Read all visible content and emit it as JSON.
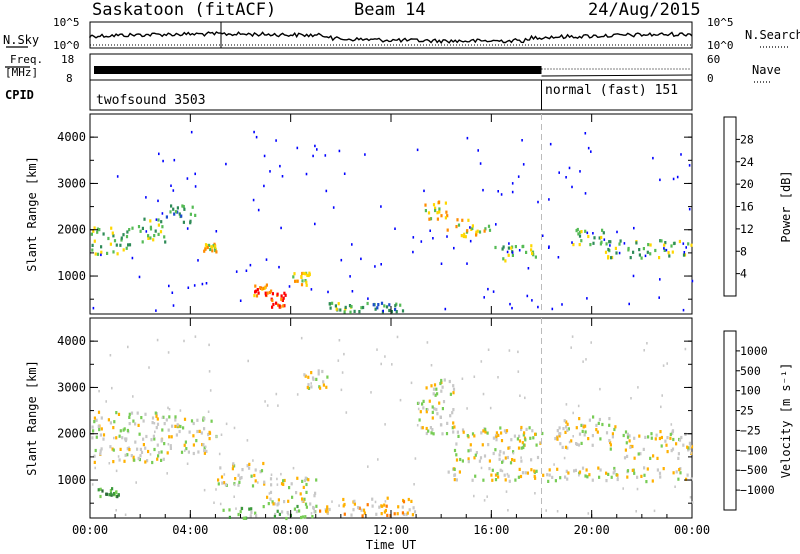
{
  "header": {
    "station": "Saskatoon (fitACF)",
    "beam": "Beam 14",
    "date": "24/Aug/2015"
  },
  "summary_panel": {
    "nsky_label": "N.Sky",
    "nsky_top_tick": "10^5",
    "nsky_bottom_tick": "10^0",
    "nsearch_label": "N.Search",
    "nsearch_top_tick": "10^5",
    "nsearch_bottom_tick": "10^0",
    "freq_label_line1": "Freq.",
    "freq_label_line2": "[MHz]",
    "freq_top_tick": "18",
    "freq_bottom_tick": "8",
    "nave_label": "Nave",
    "nave_top_tick": "60",
    "nave_bottom_tick": "0",
    "cpid_label": "CPID",
    "cpid_1": "twofsound 3503",
    "cpid_2": "normal (fast) 151"
  },
  "chart_data": [
    {
      "type": "heatmap",
      "name": "power",
      "ylabel": "Slant Range [km]",
      "colorbar_label": "Power [dB]",
      "colorbar_ticks": [
        "28",
        "24",
        "20",
        "16",
        "12",
        "8",
        "4"
      ],
      "colors": [
        "#0000ff",
        "#1a4ccc",
        "#2e8b57",
        "#55bb55",
        "#ffd700",
        "#ff8c00",
        "#ff0000"
      ],
      "y_ticks": [
        "1000",
        "2000",
        "3000",
        "4000"
      ],
      "ylim": [
        180,
        4500
      ],
      "regions": [
        {
          "x": [
            0.0,
            1.8
          ],
          "y": [
            1500,
            2100
          ],
          "level": 3
        },
        {
          "x": [
            1.8,
            3.0
          ],
          "y": [
            1750,
            2300
          ],
          "level": 3
        },
        {
          "x": [
            3.0,
            4.2
          ],
          "y": [
            2150,
            2550
          ],
          "level": 2
        },
        {
          "x": [
            4.5,
            5.0
          ],
          "y": [
            1550,
            1750
          ],
          "level": 4
        },
        {
          "x": [
            6.5,
            7.2
          ],
          "y": [
            600,
            900
          ],
          "level": 5
        },
        {
          "x": [
            7.2,
            7.8
          ],
          "y": [
            350,
            700
          ],
          "level": 6
        },
        {
          "x": [
            8.0,
            8.8
          ],
          "y": [
            800,
            1100
          ],
          "level": 4
        },
        {
          "x": [
            9.5,
            11.0
          ],
          "y": [
            250,
            450
          ],
          "level": 3
        },
        {
          "x": [
            11.0,
            12.5
          ],
          "y": [
            250,
            450
          ],
          "level": 2
        },
        {
          "x": [
            13.3,
            14.2
          ],
          "y": [
            2250,
            2650
          ],
          "level": 4
        },
        {
          "x": [
            14.2,
            16.0
          ],
          "y": [
            1850,
            2250
          ],
          "level": 4
        },
        {
          "x": [
            16.0,
            17.8
          ],
          "y": [
            1350,
            1700
          ],
          "level": 3
        },
        {
          "x": [
            18.8,
            20.5
          ],
          "y": [
            1700,
            2050
          ],
          "level": 3
        },
        {
          "x": [
            20.5,
            24.0
          ],
          "y": [
            1400,
            1800
          ],
          "level": 3
        }
      ]
    },
    {
      "type": "heatmap",
      "name": "velocity",
      "ylabel": "Slant Range [km]",
      "colorbar_label": "Velocity [m s⁻¹]",
      "colorbar_ticks": [
        "1000",
        "500",
        "100",
        "25",
        "−25",
        "−100",
        "−500",
        "−1000"
      ],
      "colors": [
        "#1f3ea8",
        "#2e6b3a",
        "#3c9a3c",
        "#77cc55",
        "#c8c8c8",
        "#ffb000",
        "#ff7a00",
        "#ff2a00",
        "#dd0000"
      ],
      "y_ticks": [
        "1000",
        "2000",
        "3000",
        "4000"
      ],
      "ylim": [
        180,
        4500
      ],
      "regions": [
        {
          "x": [
            0.0,
            3.0
          ],
          "y": [
            1400,
            2500
          ],
          "level": 4
        },
        {
          "x": [
            0.3,
            1.2
          ],
          "y": [
            650,
            850
          ],
          "level": 2
        },
        {
          "x": [
            3.0,
            5.0
          ],
          "y": [
            1600,
            2400
          ],
          "level": 4
        },
        {
          "x": [
            5.0,
            7.0
          ],
          "y": [
            900,
            1400
          ],
          "level": 4
        },
        {
          "x": [
            7.0,
            9.0
          ],
          "y": [
            500,
            1100
          ],
          "level": 4
        },
        {
          "x": [
            5.0,
            9.0
          ],
          "y": [
            200,
            500
          ],
          "level": 3
        },
        {
          "x": [
            9.0,
            13.0
          ],
          "y": [
            250,
            650
          ],
          "level": 5
        },
        {
          "x": [
            8.5,
            9.5
          ],
          "y": [
            3000,
            3400
          ],
          "level": 4
        },
        {
          "x": [
            13.0,
            14.5
          ],
          "y": [
            2000,
            3200
          ],
          "level": 4
        },
        {
          "x": [
            14.5,
            18.0
          ],
          "y": [
            1400,
            2200
          ],
          "level": 4
        },
        {
          "x": [
            18.5,
            21.0
          ],
          "y": [
            1700,
            2400
          ],
          "level": 4
        },
        {
          "x": [
            21.0,
            24.0
          ],
          "y": [
            1500,
            2100
          ],
          "level": 4
        },
        {
          "x": [
            14.0,
            24.0
          ],
          "y": [
            1000,
            1300
          ],
          "level": 4
        }
      ]
    }
  ],
  "x_axis": {
    "label": "Time UT",
    "ticks": [
      "00:00",
      "04:00",
      "08:00",
      "12:00",
      "16:00",
      "20:00",
      "00:00"
    ],
    "cpid_change_hour": 18
  }
}
